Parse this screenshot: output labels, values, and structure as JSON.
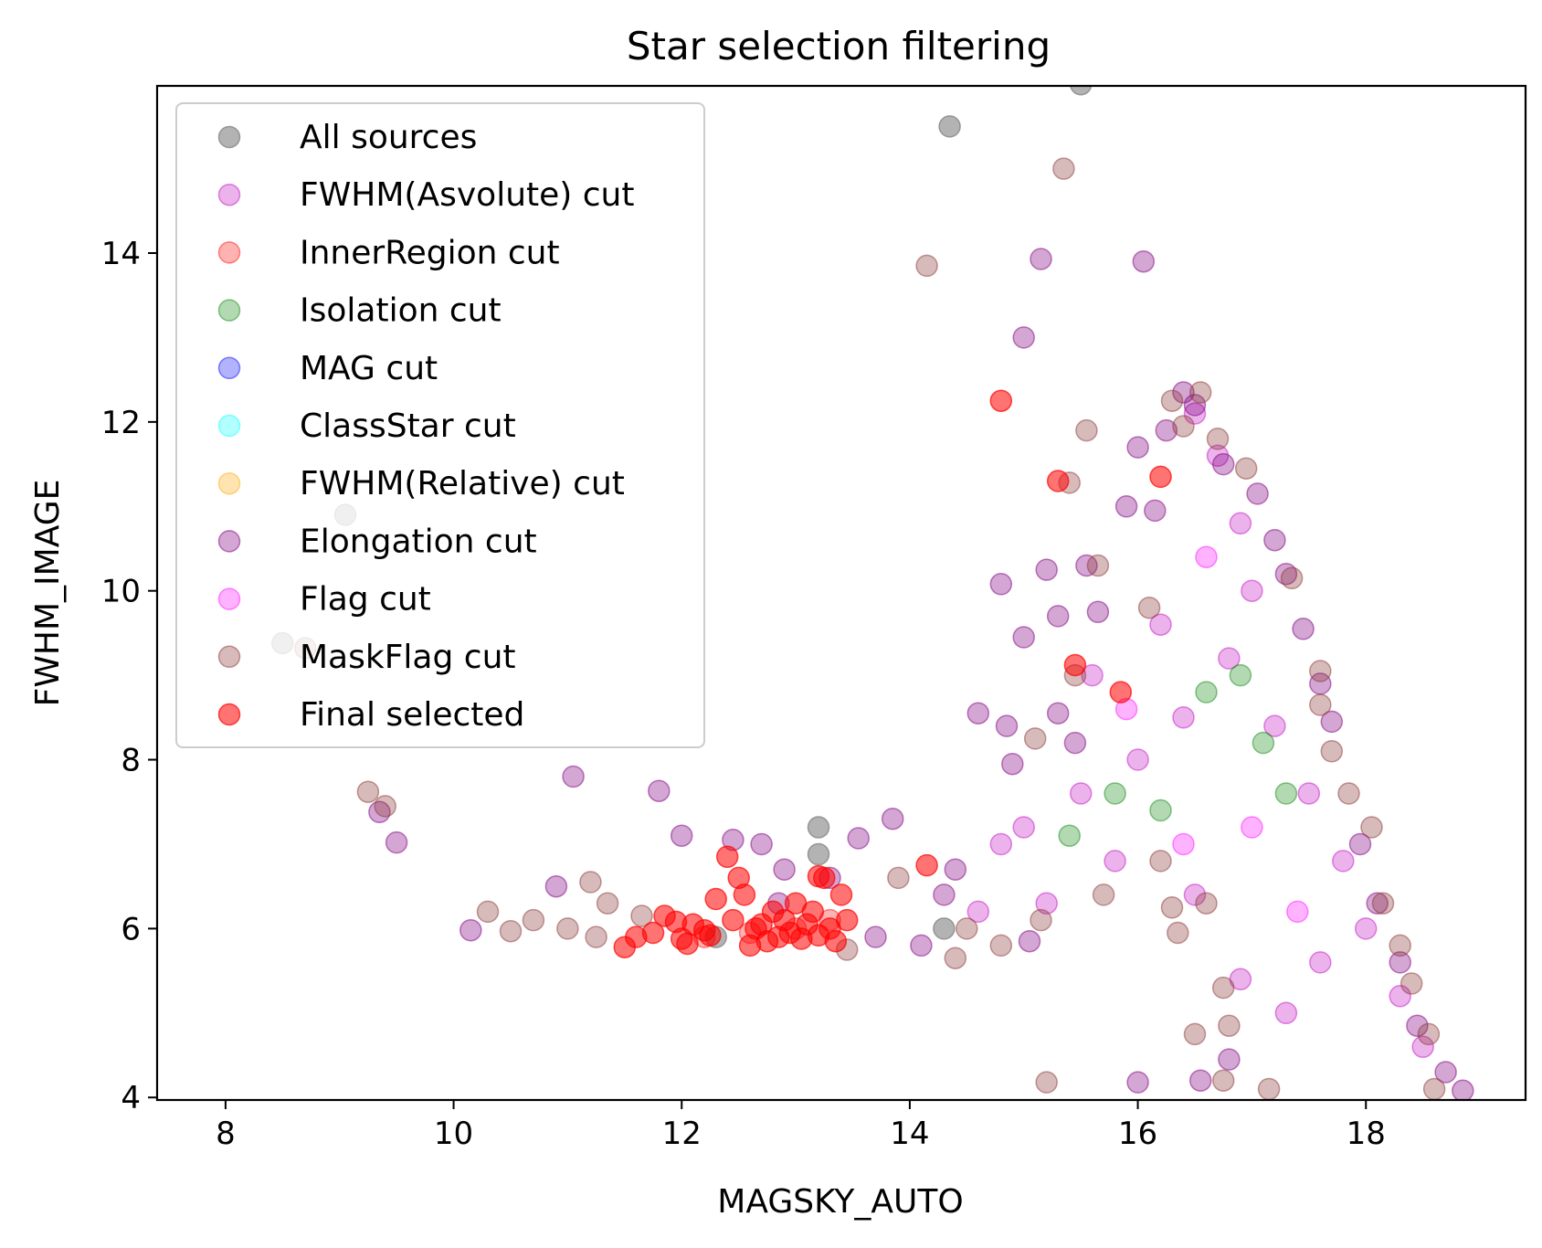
{
  "chart_data": {
    "type": "scatter",
    "title": "Star selection filtering",
    "xlabel": "MAGSKY_AUTO",
    "ylabel": "FWHM_IMAGE",
    "xlim": [
      7.4,
      19.4
    ],
    "ylim": [
      3.97,
      15.98
    ],
    "xticks": [
      8,
      10,
      12,
      14,
      16,
      18
    ],
    "yticks": [
      4,
      6,
      8,
      10,
      12,
      14
    ],
    "grid": false,
    "legend_position": "top-left",
    "series": [
      {
        "name": "All sources",
        "color": "#808080",
        "alpha": 0.6,
        "points": [
          [
            9.05,
            10.9
          ],
          [
            8.5,
            9.38
          ],
          [
            14.35,
            15.5
          ],
          [
            15.5,
            16.0
          ],
          [
            13.2,
            7.2
          ],
          [
            13.2,
            6.88
          ],
          [
            14.3,
            6.0
          ],
          [
            12.3,
            5.9
          ]
        ]
      },
      {
        "name": "FWHM(Asvolute) cut",
        "color": "#bf00bf",
        "alpha": 0.3,
        "points": [
          [
            16.5,
            12.1
          ],
          [
            16.7,
            11.6
          ],
          [
            16.9,
            10.8
          ],
          [
            17.0,
            10.0
          ],
          [
            16.8,
            9.2
          ],
          [
            16.4,
            8.5
          ],
          [
            16.0,
            8.0
          ],
          [
            15.5,
            7.6
          ],
          [
            15.0,
            7.2
          ],
          [
            14.8,
            7.0
          ],
          [
            17.2,
            8.4
          ],
          [
            17.5,
            7.6
          ],
          [
            17.8,
            6.8
          ],
          [
            18.0,
            6.0
          ],
          [
            17.6,
            5.6
          ],
          [
            16.9,
            5.4
          ],
          [
            16.5,
            6.4
          ],
          [
            15.8,
            6.8
          ],
          [
            15.2,
            6.3
          ],
          [
            14.6,
            6.2
          ],
          [
            18.3,
            5.2
          ],
          [
            18.5,
            4.6
          ],
          [
            17.3,
            5.0
          ],
          [
            16.2,
            9.6
          ],
          [
            15.6,
            9.0
          ]
        ]
      },
      {
        "name": "InnerRegion cut",
        "color": "#ff0000",
        "alpha": 0.3,
        "points": [
          [
            13.0,
            6.0
          ],
          [
            12.6,
            5.95
          ],
          [
            12.2,
            5.9
          ],
          [
            13.3,
            6.1
          ]
        ]
      },
      {
        "name": "Isolation cut",
        "color": "#008000",
        "alpha": 0.3,
        "points": [
          [
            16.9,
            9.0
          ],
          [
            17.1,
            8.2
          ],
          [
            16.6,
            8.8
          ],
          [
            17.3,
            7.6
          ],
          [
            16.2,
            7.4
          ],
          [
            15.8,
            7.6
          ],
          [
            15.4,
            7.1
          ]
        ]
      },
      {
        "name": "MAG cut",
        "color": "#0000ff",
        "alpha": 0.3,
        "points": []
      },
      {
        "name": "ClassStar cut",
        "color": "#00ffff",
        "alpha": 0.3,
        "points": []
      },
      {
        "name": "FWHM(Relative) cut",
        "color": "#ffa500",
        "alpha": 0.3,
        "points": []
      },
      {
        "name": "Elongation cut",
        "color": "#800080",
        "alpha": 0.35,
        "points": [
          [
            10.15,
            5.98
          ],
          [
            10.9,
            6.5
          ],
          [
            11.05,
            7.8
          ],
          [
            11.8,
            7.63
          ],
          [
            12.0,
            7.1
          ],
          [
            12.45,
            7.05
          ],
          [
            12.7,
            7.0
          ],
          [
            12.9,
            6.7
          ],
          [
            13.3,
            6.6
          ],
          [
            13.55,
            7.07
          ],
          [
            13.85,
            7.3
          ],
          [
            14.4,
            6.7
          ],
          [
            14.6,
            8.55
          ],
          [
            14.85,
            8.4
          ],
          [
            15.0,
            9.45
          ],
          [
            15.0,
            13.0
          ],
          [
            15.15,
            13.93
          ],
          [
            15.2,
            10.25
          ],
          [
            15.3,
            9.7
          ],
          [
            15.55,
            10.3
          ],
          [
            15.65,
            9.75
          ],
          [
            15.9,
            11.0
          ],
          [
            16.0,
            11.7
          ],
          [
            16.05,
            13.9
          ],
          [
            16.15,
            10.95
          ],
          [
            16.25,
            11.9
          ],
          [
            16.4,
            12.35
          ],
          [
            16.5,
            12.2
          ],
          [
            16.75,
            11.5
          ],
          [
            17.05,
            11.15
          ],
          [
            17.2,
            10.6
          ],
          [
            17.3,
            10.2
          ],
          [
            17.45,
            9.55
          ],
          [
            17.6,
            8.9
          ],
          [
            17.7,
            8.45
          ],
          [
            17.95,
            7.0
          ],
          [
            18.1,
            6.3
          ],
          [
            18.3,
            5.6
          ],
          [
            18.45,
            4.85
          ],
          [
            18.7,
            4.3
          ],
          [
            18.85,
            4.08
          ],
          [
            16.0,
            4.18
          ],
          [
            16.55,
            4.2
          ],
          [
            16.8,
            4.45
          ],
          [
            14.8,
            10.08
          ],
          [
            9.35,
            7.38
          ],
          [
            9.5,
            7.02
          ],
          [
            15.05,
            5.85
          ],
          [
            14.9,
            7.95
          ],
          [
            15.3,
            8.55
          ],
          [
            15.45,
            8.2
          ],
          [
            14.3,
            6.4
          ],
          [
            14.1,
            5.8
          ],
          [
            13.7,
            5.9
          ],
          [
            12.85,
            6.3
          ]
        ]
      },
      {
        "name": "Flag cut",
        "color": "#ff00ff",
        "alpha": 0.3,
        "points": [
          [
            16.6,
            10.4
          ],
          [
            17.0,
            7.2
          ],
          [
            16.4,
            7.0
          ],
          [
            15.9,
            8.6
          ],
          [
            17.4,
            6.2
          ]
        ]
      },
      {
        "name": "MaskFlag cut",
        "color": "#8b3a3a",
        "alpha": 0.35,
        "points": [
          [
            8.7,
            9.32
          ],
          [
            9.25,
            7.62
          ],
          [
            9.4,
            7.45
          ],
          [
            10.3,
            6.2
          ],
          [
            10.5,
            5.97
          ],
          [
            10.7,
            6.1
          ],
          [
            11.0,
            6.0
          ],
          [
            11.2,
            6.55
          ],
          [
            11.35,
            6.3
          ],
          [
            11.25,
            5.9
          ],
          [
            14.15,
            13.85
          ],
          [
            15.35,
            15.0
          ],
          [
            15.55,
            11.9
          ],
          [
            15.4,
            11.28
          ],
          [
            15.1,
            8.25
          ],
          [
            15.2,
            4.18
          ],
          [
            16.3,
            12.25
          ],
          [
            16.55,
            12.35
          ],
          [
            16.4,
            11.95
          ],
          [
            16.7,
            11.8
          ],
          [
            16.95,
            11.45
          ],
          [
            17.35,
            10.15
          ],
          [
            17.6,
            9.05
          ],
          [
            17.6,
            8.65
          ],
          [
            17.7,
            8.1
          ],
          [
            17.85,
            7.6
          ],
          [
            18.05,
            7.2
          ],
          [
            18.15,
            6.3
          ],
          [
            18.3,
            5.8
          ],
          [
            18.4,
            5.35
          ],
          [
            18.55,
            4.75
          ],
          [
            18.6,
            4.1
          ],
          [
            17.15,
            4.1
          ],
          [
            16.75,
            5.3
          ],
          [
            16.8,
            4.85
          ],
          [
            16.5,
            4.75
          ],
          [
            16.75,
            4.2
          ],
          [
            13.45,
            5.75
          ],
          [
            14.4,
            5.65
          ],
          [
            14.8,
            5.8
          ],
          [
            15.65,
            10.3
          ],
          [
            15.45,
            9.0
          ],
          [
            16.1,
            9.8
          ],
          [
            15.7,
            6.4
          ],
          [
            16.3,
            6.25
          ],
          [
            16.35,
            5.95
          ],
          [
            16.6,
            6.3
          ],
          [
            16.2,
            6.8
          ],
          [
            15.15,
            6.1
          ],
          [
            14.5,
            6.0
          ],
          [
            13.9,
            6.6
          ],
          [
            11.65,
            6.15
          ]
        ]
      },
      {
        "name": "Final selected",
        "color": "#ff0000",
        "alpha": 0.55,
        "points": [
          [
            11.5,
            5.78
          ],
          [
            11.6,
            5.9
          ],
          [
            11.75,
            5.95
          ],
          [
            11.85,
            6.15
          ],
          [
            12.0,
            5.88
          ],
          [
            12.1,
            6.05
          ],
          [
            12.25,
            5.92
          ],
          [
            12.3,
            6.35
          ],
          [
            12.45,
            6.1
          ],
          [
            12.55,
            6.4
          ],
          [
            12.6,
            5.8
          ],
          [
            12.65,
            6.0
          ],
          [
            12.7,
            6.05
          ],
          [
            12.75,
            5.85
          ],
          [
            12.8,
            6.2
          ],
          [
            12.85,
            5.9
          ],
          [
            12.9,
            6.1
          ],
          [
            12.95,
            5.95
          ],
          [
            13.0,
            6.3
          ],
          [
            13.05,
            5.88
          ],
          [
            13.1,
            6.05
          ],
          [
            13.15,
            6.2
          ],
          [
            13.2,
            5.92
          ],
          [
            13.25,
            6.6
          ],
          [
            13.3,
            6.0
          ],
          [
            13.35,
            5.85
          ],
          [
            13.4,
            6.4
          ],
          [
            13.45,
            6.1
          ],
          [
            12.4,
            6.85
          ],
          [
            12.5,
            6.6
          ],
          [
            13.2,
            6.62
          ],
          [
            14.15,
            6.75
          ],
          [
            14.8,
            12.25
          ],
          [
            15.3,
            11.3
          ],
          [
            15.45,
            9.12
          ],
          [
            15.85,
            8.8
          ],
          [
            16.2,
            11.35
          ],
          [
            12.05,
            5.82
          ],
          [
            12.2,
            5.98
          ],
          [
            11.95,
            6.08
          ]
        ]
      }
    ]
  }
}
